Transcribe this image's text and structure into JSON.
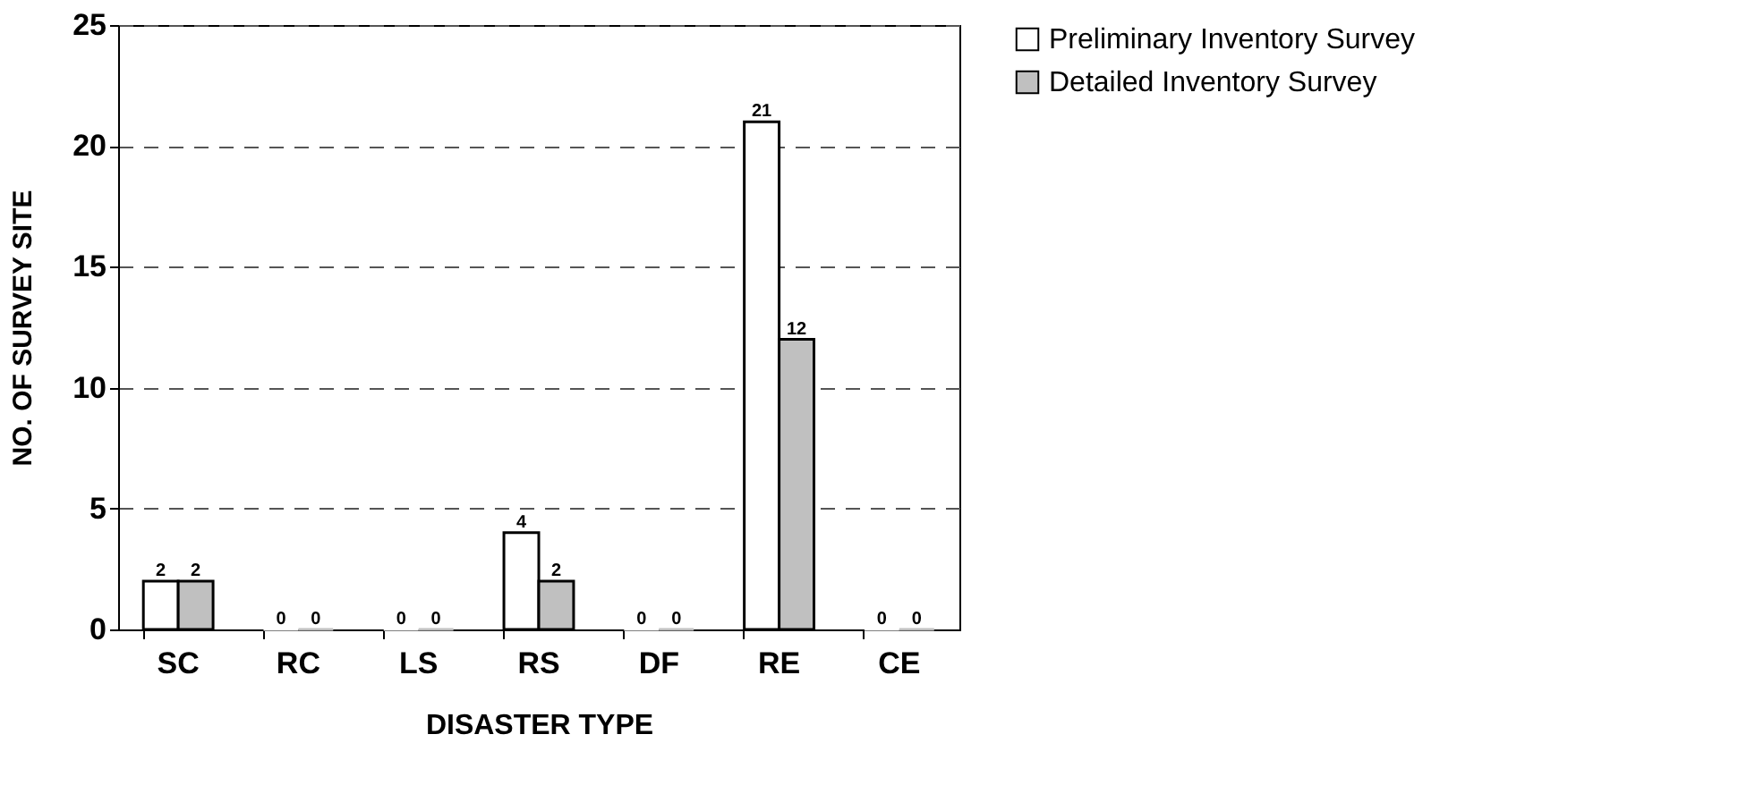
{
  "chart_data": {
    "type": "bar",
    "xlabel": "DISASTER TYPE",
    "ylabel": "NO. OF SURVEY SITE",
    "categories": [
      "SC",
      "RC",
      "LS",
      "RS",
      "DF",
      "RE",
      "CE"
    ],
    "series": [
      {
        "name": "Preliminary Inventory Survey",
        "color": "#ffffff",
        "values": [
          2,
          0,
          0,
          4,
          0,
          21,
          0
        ]
      },
      {
        "name": "Detailed Inventory Survey",
        "color": "#c0c0c0",
        "values": [
          2,
          0,
          0,
          2,
          0,
          12,
          0
        ]
      }
    ],
    "ylim": [
      0,
      25
    ],
    "yticks": [
      0,
      5,
      10,
      15,
      20,
      25
    ],
    "grid": "y",
    "legend": "top right",
    "data_labels": true
  }
}
